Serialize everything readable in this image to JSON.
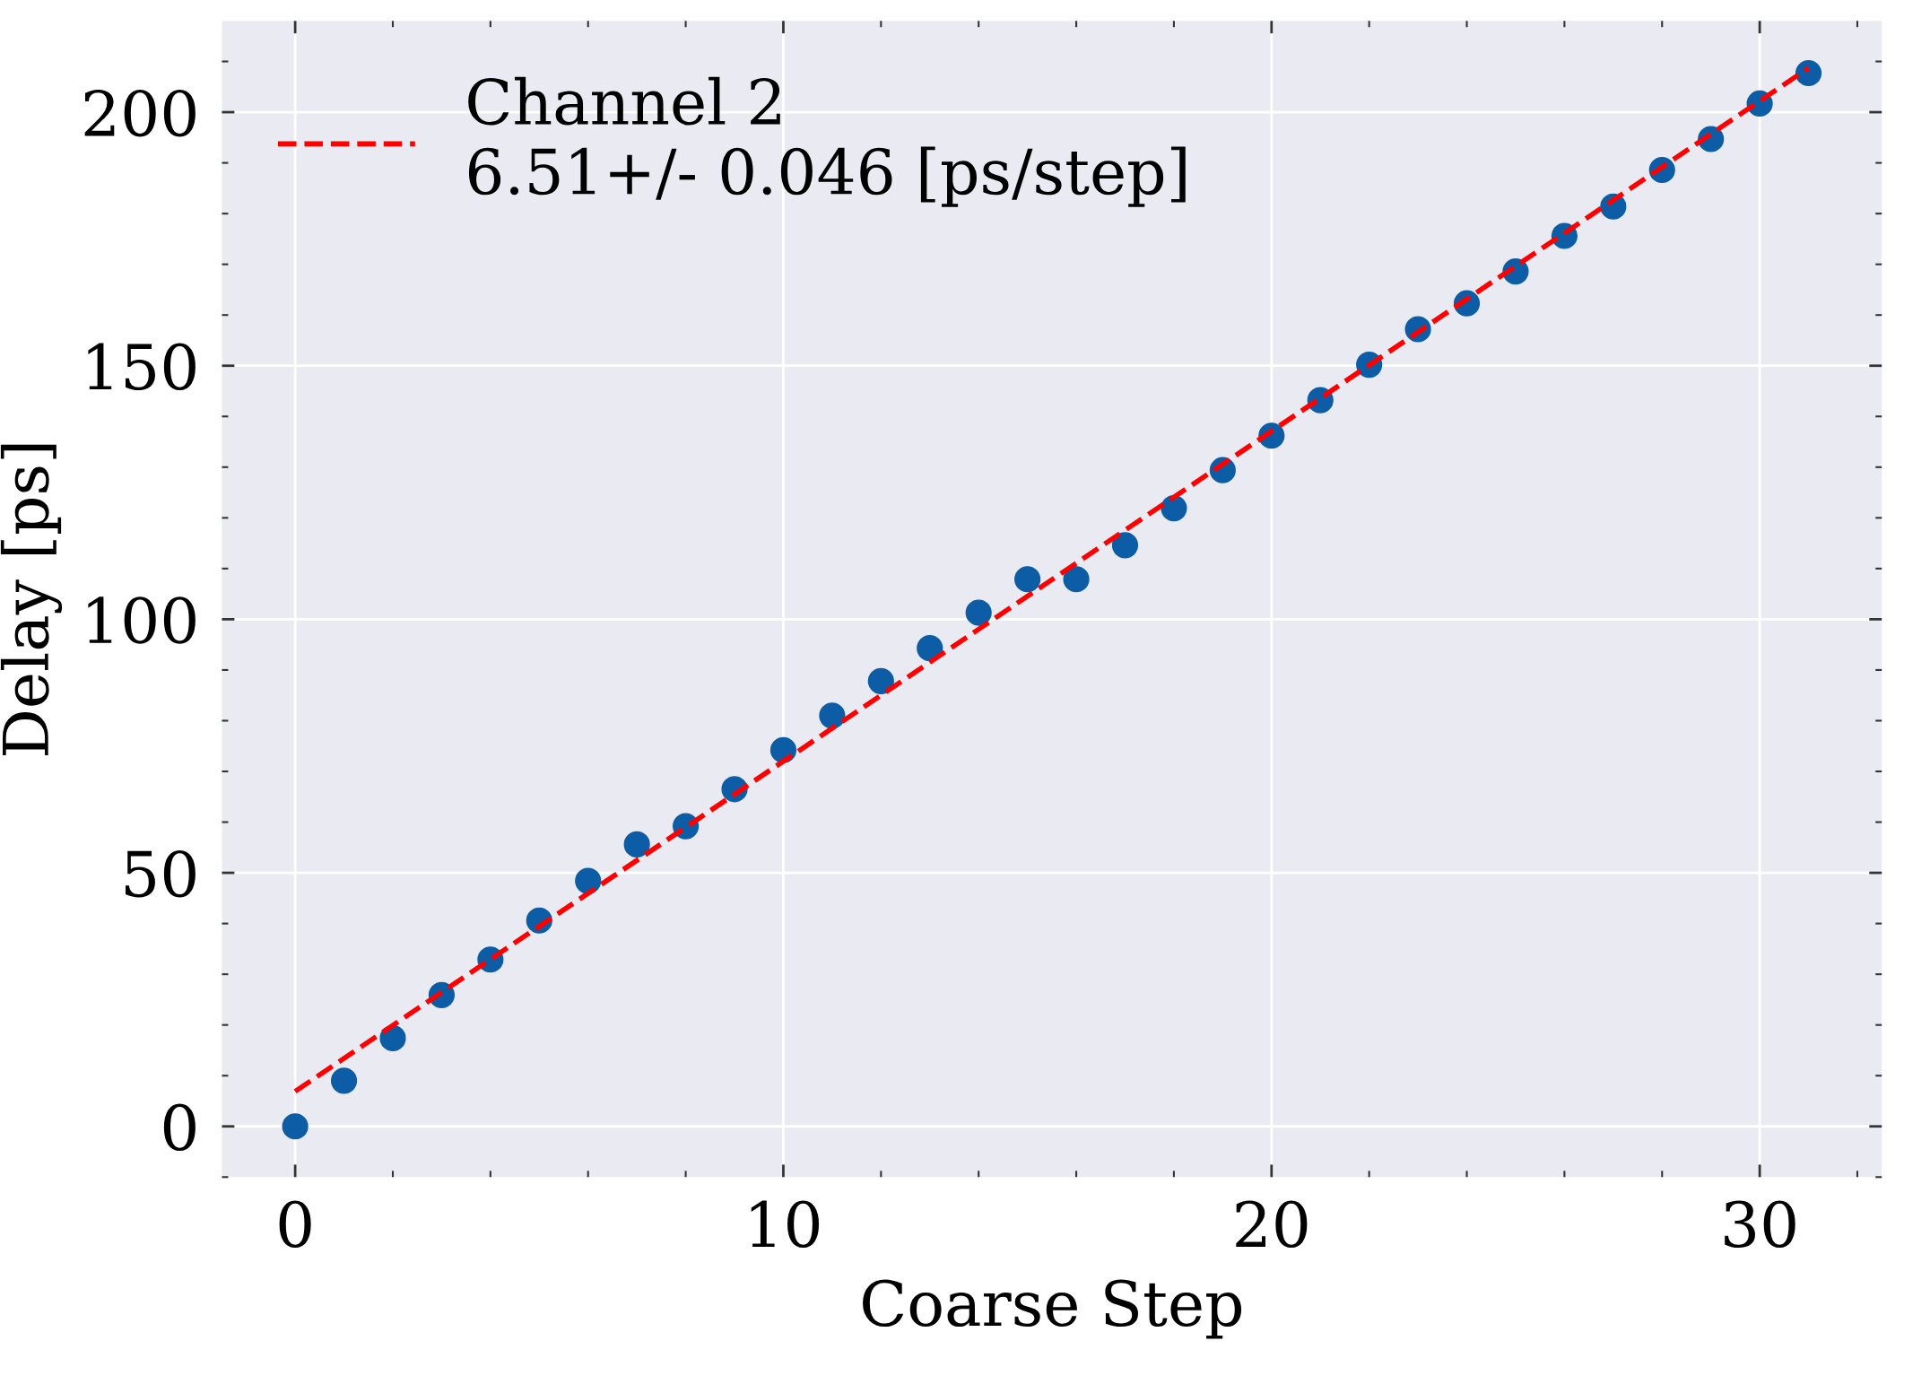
{
  "chart_data": {
    "type": "scatter",
    "xlabel": "Coarse Step",
    "ylabel": "Delay [ps]",
    "xlim": [
      -1.5,
      32.5
    ],
    "ylim": [
      -10,
      218
    ],
    "xticks": [
      0,
      10,
      20,
      30
    ],
    "yticks": [
      0,
      50,
      100,
      150,
      200
    ],
    "grid": true,
    "legend": "top left",
    "marker": "circle",
    "x": [
      0,
      1,
      2,
      3,
      4,
      5,
      6,
      7,
      8,
      9,
      10,
      11,
      12,
      13,
      14,
      15,
      16,
      17,
      18,
      19,
      20,
      21,
      22,
      23,
      24,
      25,
      26,
      27,
      28,
      29,
      30,
      31
    ],
    "series": [
      {
        "color": "#0c5da5",
        "values": [
          0,
          9,
          17.4,
          25.9,
          32.9,
          40.6,
          48.4,
          55.6,
          59.2,
          66.5,
          74.2,
          81,
          87.8,
          94.3,
          101.3,
          107.9,
          107.9,
          114.6,
          121.9,
          129.4,
          136.2,
          143.2,
          150.2,
          157.2,
          162.3,
          168.6,
          175.6,
          181.4,
          188.6,
          194.7,
          201.7,
          207.7
        ]
      },
      {
        "type": "line",
        "name": "Channel 2\n6.51+/- 0.046 [ps/step]",
        "color": "#ff0000",
        "line_style": "dashed",
        "marker": "none",
        "x": [
          0,
          31
        ],
        "values": [
          6.9,
          208.7
        ]
      }
    ]
  }
}
